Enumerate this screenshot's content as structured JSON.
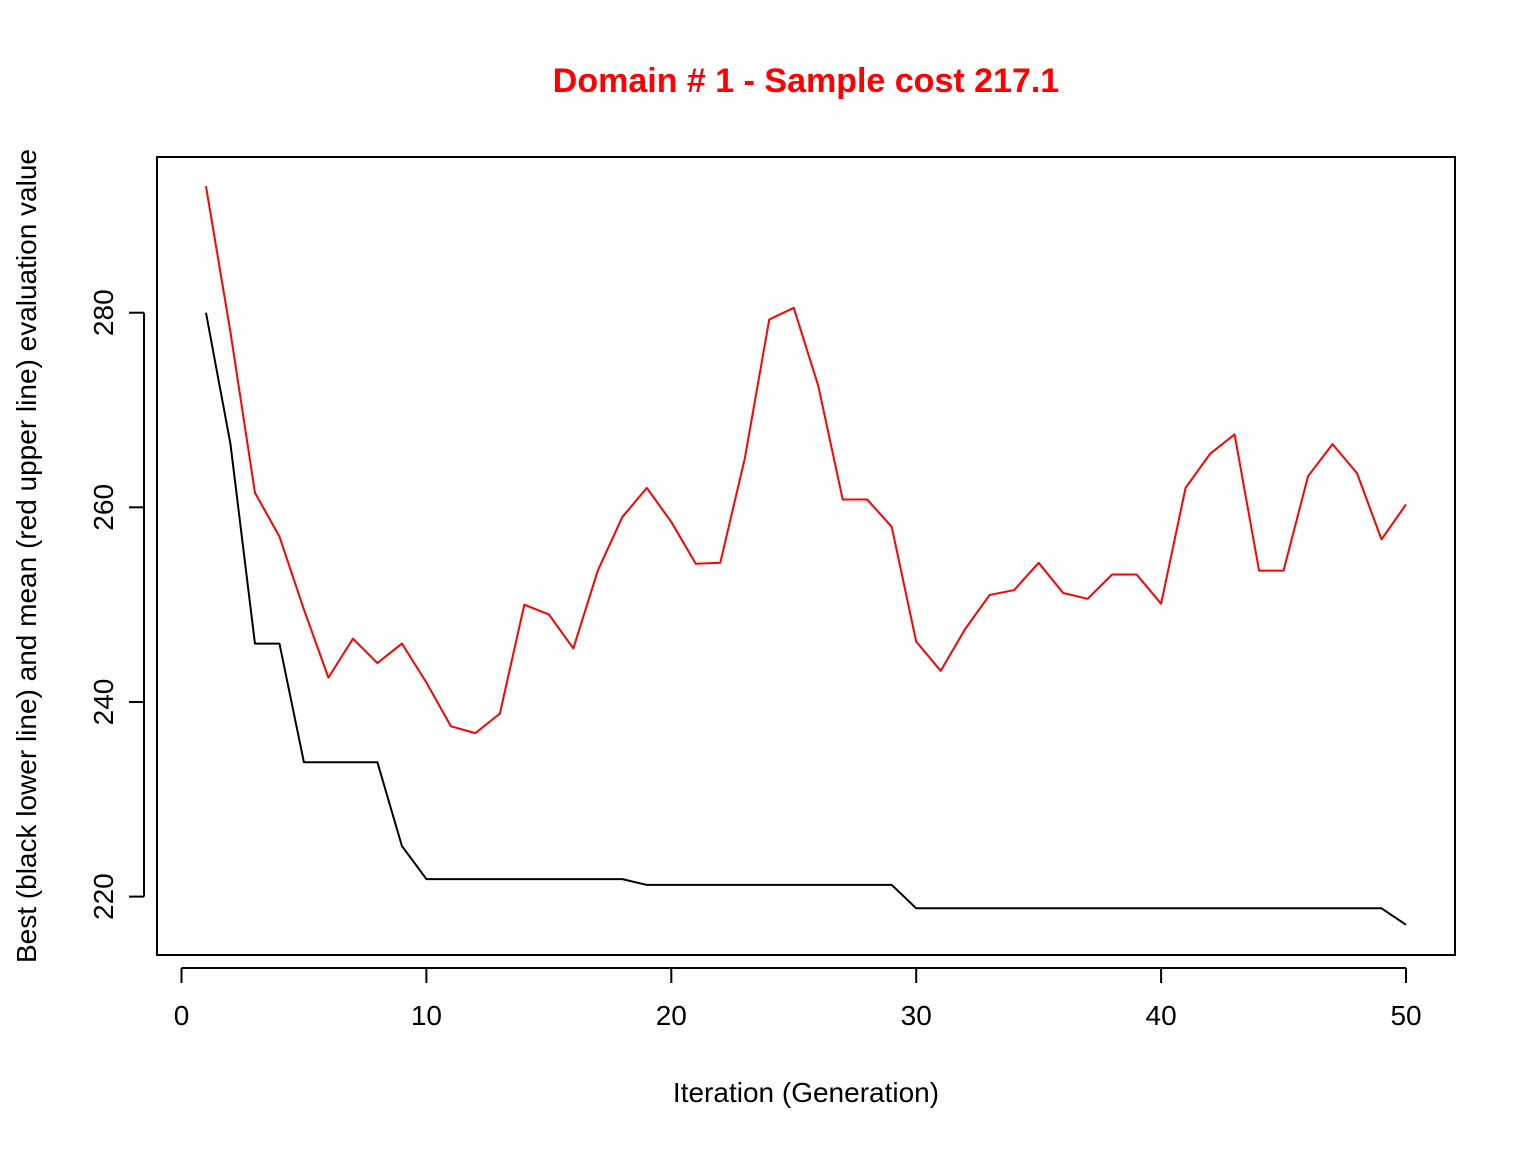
{
  "chart_data": {
    "type": "line",
    "title": "Domain # 1  - Sample cost 217.1",
    "title_color": "#ff0000",
    "xlabel": "Iteration (Generation)",
    "ylabel": "Best (black lower line) and mean (red upper line) evaluation value",
    "xlim": [
      -1,
      52
    ],
    "ylim": [
      214,
      296
    ],
    "xticks": [
      0,
      10,
      20,
      30,
      40,
      50
    ],
    "yticks": [
      220,
      240,
      260,
      280
    ],
    "grid": false,
    "legend": "none",
    "x": [
      1,
      2,
      3,
      4,
      5,
      6,
      7,
      8,
      9,
      10,
      11,
      12,
      13,
      14,
      15,
      16,
      17,
      18,
      19,
      20,
      21,
      22,
      23,
      24,
      25,
      26,
      27,
      28,
      29,
      30,
      31,
      32,
      33,
      34,
      35,
      36,
      37,
      38,
      39,
      40,
      41,
      42,
      43,
      44,
      45,
      46,
      47,
      48,
      49,
      50
    ],
    "series": [
      {
        "color": "#ff0000",
        "values": [
          293,
          278,
          261.5,
          257,
          249.5,
          242.5,
          246.5,
          244,
          246,
          242,
          237.5,
          236.8,
          238.8,
          250,
          249,
          245.5,
          253.5,
          259,
          262,
          258.5,
          254.2,
          254.3,
          265,
          279.3,
          280.5,
          272.5,
          260.8,
          260.8,
          258,
          246.2,
          243.2,
          247.5,
          251,
          251.5,
          254.3,
          251.2,
          250.6,
          253.1,
          253.1,
          250.1,
          262,
          265.5,
          267.5,
          253.5,
          253.5,
          263.2,
          266.5,
          263.5,
          256.7,
          260.3
        ]
      },
      {
        "color": "#000000",
        "values": [
          280,
          266.5,
          246,
          246,
          233.8,
          233.8,
          233.8,
          233.8,
          225.2,
          221.8,
          221.8,
          221.8,
          221.8,
          221.8,
          221.8,
          221.8,
          221.8,
          221.8,
          221.2,
          221.2,
          221.2,
          221.2,
          221.2,
          221.2,
          221.2,
          221.2,
          221.2,
          221.2,
          221.2,
          218.8,
          218.8,
          218.8,
          218.8,
          218.8,
          218.8,
          218.8,
          218.8,
          218.8,
          218.8,
          218.8,
          218.8,
          218.8,
          218.8,
          218.8,
          218.8,
          218.8,
          218.8,
          218.8,
          218.8,
          217.1
        ]
      }
    ]
  }
}
